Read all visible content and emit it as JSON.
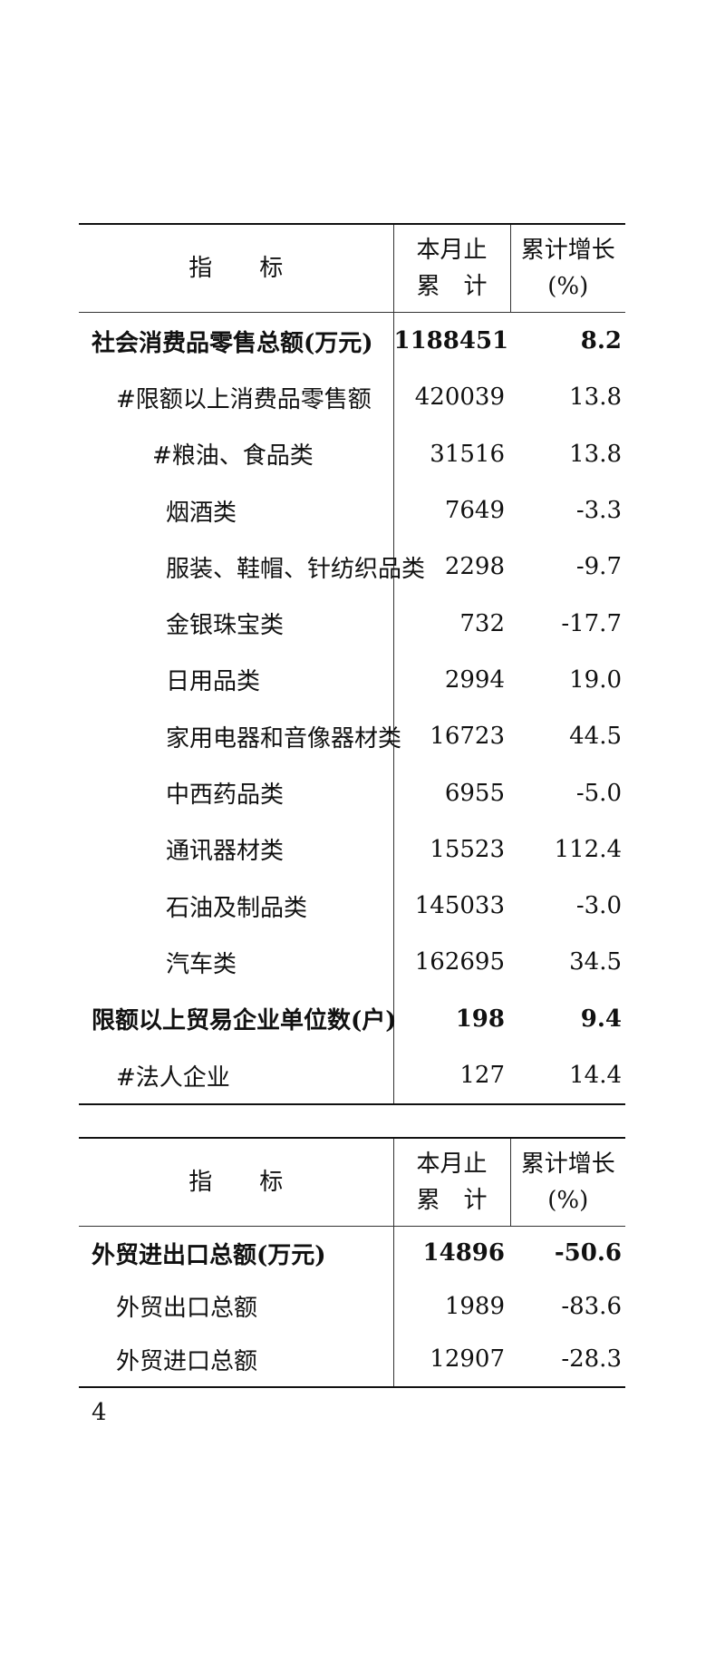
{
  "header": {
    "indicator": "指　　标",
    "month_cum_line1": "本月止",
    "month_cum_line2": "累　计",
    "growth_line1": "累计增长",
    "growth_line2": "(%)"
  },
  "table1": {
    "rows": [
      {
        "label": "社会消费品零售总额(万元)",
        "value": "1188451",
        "growth": "8.2"
      },
      {
        "label": "#限额以上消费品零售额",
        "value": "420039",
        "growth": "13.8"
      },
      {
        "label": "#粮油、食品类",
        "value": "31516",
        "growth": "13.8"
      },
      {
        "label": "烟酒类",
        "value": "7649",
        "growth": "-3.3"
      },
      {
        "label": "服装、鞋帽、针纺织品类",
        "value": "2298",
        "growth": "-9.7"
      },
      {
        "label": "金银珠宝类",
        "value": "732",
        "growth": "-17.7"
      },
      {
        "label": "日用品类",
        "value": "2994",
        "growth": "19.0"
      },
      {
        "label": "家用电器和音像器材类",
        "value": "16723",
        "growth": "44.5"
      },
      {
        "label": "中西药品类",
        "value": "6955",
        "growth": "-5.0"
      },
      {
        "label": "通讯器材类",
        "value": "15523",
        "growth": "112.4"
      },
      {
        "label": "石油及制品类",
        "value": "145033",
        "growth": "-3.0"
      },
      {
        "label": "汽车类",
        "value": "162695",
        "growth": "34.5"
      },
      {
        "label": "限额以上贸易企业单位数(户)",
        "value": "198",
        "growth": "9.4"
      },
      {
        "label": "#法人企业",
        "value": "127",
        "growth": "14.4"
      }
    ]
  },
  "table2": {
    "rows": [
      {
        "label": "外贸进出口总额(万元)",
        "value": "14896",
        "growth": "-50.6"
      },
      {
        "label": "外贸出口总额",
        "value": "1989",
        "growth": "-83.6"
      },
      {
        "label": "外贸进口总额",
        "value": "12907",
        "growth": "-28.3"
      }
    ]
  },
  "page_number": "4"
}
